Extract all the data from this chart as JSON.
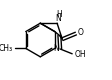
{
  "bg_color": "#ffffff",
  "bond_color": "#000000",
  "lw": 1.0,
  "fs": 5.5,
  "fig_width": 1.13,
  "fig_height": 0.8,
  "dpi": 100,
  "xlim": [
    0.0,
    1.15
  ],
  "ylim": [
    0.05,
    1.05
  ]
}
